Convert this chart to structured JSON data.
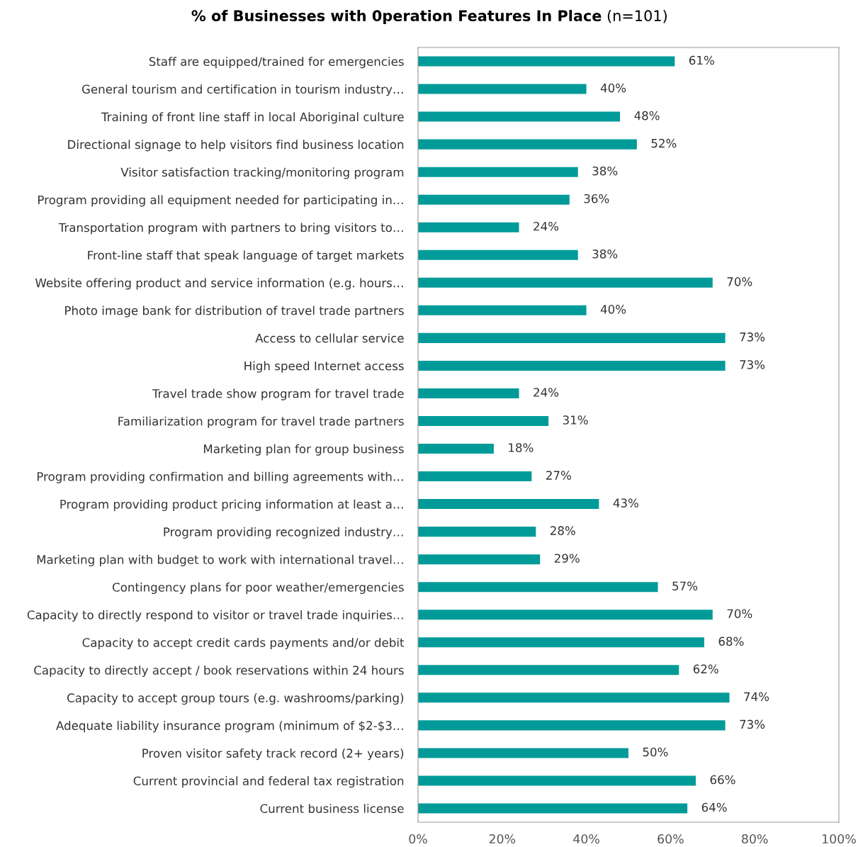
{
  "chart_data": {
    "type": "bar",
    "orientation": "horizontal",
    "title": "% of Businesses with 0peration Features In Place",
    "subtitle": "(n=101)",
    "categories": [
      "Staff are equipped/trained for emergencies",
      "General tourism and certification in tourism industry…",
      "Training of front line staff in local Aboriginal culture",
      "Directional signage to help visitors find business location",
      "Visitor satisfaction tracking/monitoring program",
      "Program providing all equipment needed for participating in…",
      "Transportation program with partners to bring visitors to…",
      "Front-line staff that speak language of target markets",
      "Website offering product and service information (e.g. hours…",
      "Photo image bank for distribution of travel trade partners",
      "Access to cellular service",
      "High speed Internet access",
      "Travel trade show program for travel trade",
      "Familiarization program for travel trade partners",
      "Marketing plan for group business",
      "Program providing confirmation and billing agreements with…",
      "Program providing product pricing information at least a…",
      "Program providing recognized industry…",
      "Marketing plan with budget to work with international travel…",
      "Contingency plans for poor weather/emergencies",
      "Capacity to directly respond to visitor or travel trade inquiries…",
      "Capacity to accept credit cards payments and/or debit",
      "Capacity to directly accept / book reservations within 24 hours",
      "Capacity to accept group tours (e.g. washrooms/parking)",
      "Adequate liability insurance program (minimum of $2-$3…",
      "Proven visitor safety track record (2+ years)",
      "Current provincial and federal tax registration",
      "Current business license"
    ],
    "series": [
      {
        "color": "#009b98",
        "values": [
          61,
          40,
          48,
          52,
          38,
          36,
          24,
          38,
          70,
          40,
          73,
          73,
          24,
          31,
          18,
          27,
          43,
          28,
          29,
          57,
          70,
          68,
          62,
          74,
          73,
          50,
          66,
          64
        ]
      }
    ],
    "value_labels": [
      "61%",
      "40%",
      "48%",
      "52%",
      "38%",
      "36%",
      "24%",
      "38%",
      "70%",
      "40%",
      "73%",
      "73%",
      "24%",
      "31%",
      "18%",
      "27%",
      "43%",
      "28%",
      "29%",
      "57%",
      "70%",
      "68%",
      "62%",
      "74%",
      "73%",
      "50%",
      "66%",
      "64%"
    ],
    "xlim": [
      0,
      100
    ],
    "xticks": [
      {
        "value": 0,
        "label": "0%"
      },
      {
        "value": 20,
        "label": "20%"
      },
      {
        "value": 40,
        "label": "40%"
      },
      {
        "value": 60,
        "label": "60%"
      },
      {
        "value": 80,
        "label": "80%"
      },
      {
        "value": 100,
        "label": "100%"
      }
    ],
    "grid": false,
    "legend": false
  }
}
